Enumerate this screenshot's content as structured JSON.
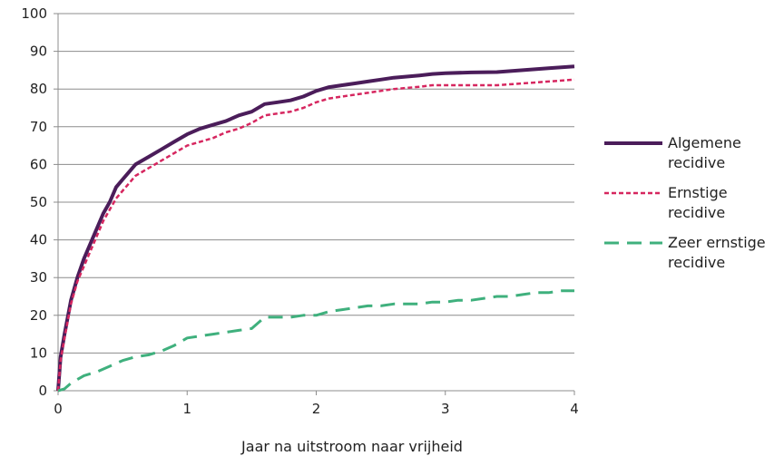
{
  "chart_data": {
    "type": "line",
    "xlabel": "Jaar na uitstroom naar vrijheid",
    "ylabel": "",
    "xlim": [
      0,
      4
    ],
    "ylim": [
      0,
      100
    ],
    "x_ticks": [
      "0",
      "1",
      "2",
      "3",
      "4"
    ],
    "y_ticks": [
      "0",
      "10",
      "20",
      "30",
      "40",
      "50",
      "60",
      "70",
      "80",
      "90",
      "100"
    ],
    "grid": "horizontal",
    "legend_position": "right",
    "series": [
      {
        "name_lines": [
          "Algemene",
          "recidive"
        ],
        "color": "#4b1d5a",
        "style": "solid",
        "x": [
          0,
          0.02,
          0.05,
          0.1,
          0.15,
          0.2,
          0.25,
          0.3,
          0.35,
          0.4,
          0.45,
          0.5,
          0.6,
          0.7,
          0.8,
          0.9,
          1.0,
          1.1,
          1.2,
          1.3,
          1.4,
          1.5,
          1.6,
          1.7,
          1.8,
          1.9,
          2.0,
          2.1,
          2.2,
          2.3,
          2.4,
          2.5,
          2.6,
          2.7,
          2.8,
          2.9,
          3.0,
          3.2,
          3.4,
          3.6,
          3.8,
          4.0
        ],
        "y": [
          0,
          9,
          15,
          24,
          30,
          35,
          39,
          43,
          47,
          50,
          54,
          56,
          60,
          62,
          64,
          66,
          68,
          69.5,
          70.5,
          71.5,
          73,
          74,
          76,
          76.5,
          77,
          78,
          79.5,
          80.5,
          81,
          81.5,
          82,
          82.5,
          83,
          83.3,
          83.6,
          84,
          84.2,
          84.4,
          84.5,
          85,
          85.5,
          86
        ]
      },
      {
        "name_lines": [
          "Ernstige",
          "recidive"
        ],
        "color": "#d6265f",
        "style": "dotted",
        "x": [
          0,
          0.02,
          0.05,
          0.1,
          0.15,
          0.2,
          0.25,
          0.3,
          0.35,
          0.4,
          0.45,
          0.5,
          0.6,
          0.7,
          0.8,
          0.9,
          1.0,
          1.1,
          1.2,
          1.3,
          1.4,
          1.5,
          1.6,
          1.7,
          1.8,
          1.9,
          2.0,
          2.1,
          2.2,
          2.3,
          2.4,
          2.5,
          2.6,
          2.7,
          2.8,
          2.9,
          3.0,
          3.2,
          3.4,
          3.6,
          3.8,
          4.0
        ],
        "y": [
          0,
          8,
          14,
          23,
          29,
          33,
          37,
          41,
          45,
          48,
          51,
          53,
          57,
          59,
          61,
          63,
          65,
          66,
          67,
          68.5,
          69.5,
          71,
          73,
          73.5,
          74,
          75,
          76.5,
          77.5,
          78,
          78.5,
          79,
          79.5,
          80,
          80.3,
          80.6,
          81,
          81,
          81,
          81,
          81.5,
          82,
          82.5
        ]
      },
      {
        "name_lines": [
          "Zeer ernstige",
          "recidive"
        ],
        "color": "#3fb07d",
        "style": "dashed",
        "x": [
          0,
          0.05,
          0.1,
          0.2,
          0.3,
          0.4,
          0.5,
          0.6,
          0.7,
          0.8,
          0.9,
          1.0,
          1.1,
          1.2,
          1.3,
          1.4,
          1.5,
          1.6,
          1.7,
          1.8,
          1.9,
          2.0,
          2.1,
          2.2,
          2.3,
          2.4,
          2.5,
          2.6,
          2.7,
          2.8,
          2.9,
          3.0,
          3.1,
          3.2,
          3.3,
          3.4,
          3.5,
          3.6,
          3.7,
          3.8,
          3.9,
          4.0
        ],
        "y": [
          0,
          0.5,
          2,
          4,
          5,
          6.5,
          8,
          9,
          9.5,
          10.5,
          12,
          14,
          14.5,
          15,
          15.5,
          16,
          16.5,
          19.5,
          19.5,
          19.5,
          20,
          20,
          21,
          21.5,
          22,
          22.5,
          22.5,
          23,
          23,
          23,
          23.5,
          23.5,
          24,
          24,
          24.5,
          25,
          25,
          25.5,
          26,
          26,
          26.5,
          26.5
        ]
      }
    ]
  }
}
